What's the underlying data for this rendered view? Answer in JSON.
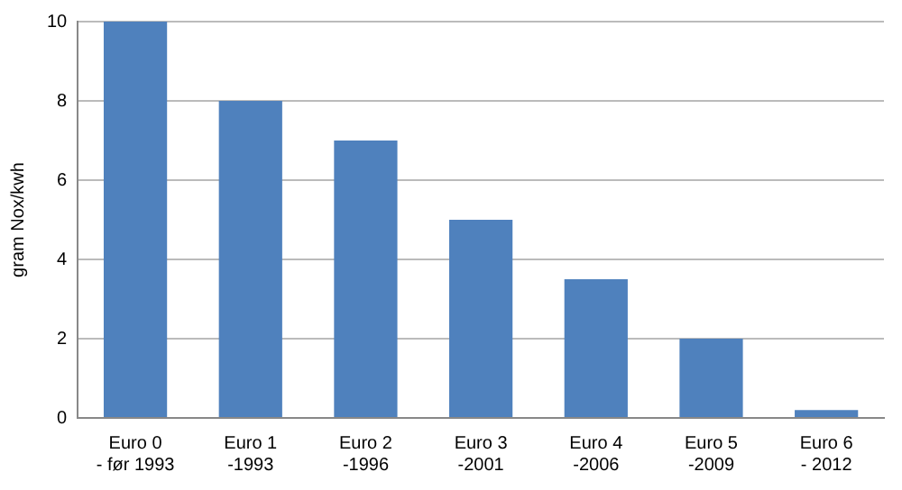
{
  "chart_data": {
    "type": "bar",
    "ylabel": "gram Nox/kwh",
    "categories": [
      "Euro 0\n- før 1993",
      "Euro 1\n-1993",
      "Euro 2\n-1996",
      "Euro 3\n-2001",
      "Euro 4\n-2006",
      "Euro 5\n-2009",
      "Euro 6\n- 2012"
    ],
    "values": [
      10,
      8,
      7,
      5,
      3.5,
      2,
      0.2
    ],
    "color": "#4f81bd",
    "ylim": [
      0,
      10
    ],
    "yticks": [
      0,
      2,
      4,
      6,
      8,
      10
    ],
    "grid": "y"
  }
}
